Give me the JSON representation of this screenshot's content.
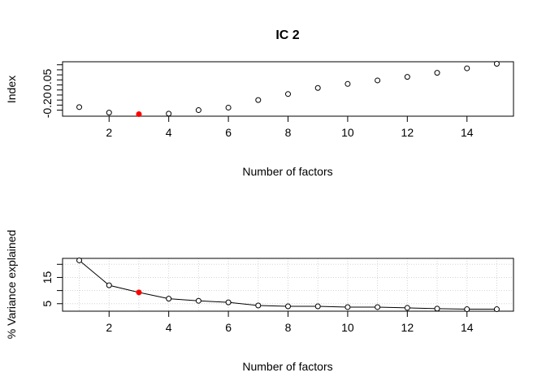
{
  "colors": {
    "highlight": "#ff0000",
    "point": "#000000",
    "grid": "#d3d3d3",
    "frame": "#000000"
  },
  "chart_data": [
    {
      "type": "scatter",
      "title": "IC 2",
      "xlabel": "Number of factors",
      "ylabel": "Index",
      "x": [
        1,
        2,
        3,
        4,
        5,
        6,
        7,
        8,
        9,
        10,
        11,
        12,
        13,
        14,
        15
      ],
      "y": [
        -0.22,
        -0.275,
        -0.29,
        -0.285,
        -0.25,
        -0.225,
        -0.15,
        -0.09,
        -0.03,
        0.01,
        0.045,
        0.08,
        0.12,
        0.165,
        0.21
      ],
      "highlight_index": 2,
      "xlim": [
        0.44,
        15.56
      ],
      "ylim": [
        -0.31,
        0.23
      ],
      "xticks": [
        2,
        4,
        6,
        8,
        10,
        12,
        14
      ],
      "yticks": [
        -0.2,
        0.05
      ],
      "ytick_labels": [
        "-0.20",
        "0.05"
      ],
      "grid": false
    },
    {
      "type": "line",
      "title": "",
      "xlabel": "Number of factors",
      "ylabel": "% Variance explained",
      "x": [
        1,
        2,
        3,
        4,
        5,
        6,
        7,
        8,
        9,
        10,
        11,
        12,
        13,
        14,
        15
      ],
      "y": [
        21.5,
        12,
        9.3,
        6.9,
        6.1,
        5.5,
        4.3,
        4.0,
        4.0,
        3.7,
        3.7,
        3.4,
        3.1,
        2.9,
        2.9
      ],
      "highlight_index": 2,
      "xlim": [
        0.44,
        15.56
      ],
      "ylim": [
        2.14,
        22.26
      ],
      "xticks": [
        2,
        4,
        6,
        8,
        10,
        12,
        14
      ],
      "yticks": [
        5,
        15
      ],
      "ytick_labels": [
        "5",
        "15"
      ],
      "grid": true
    }
  ]
}
